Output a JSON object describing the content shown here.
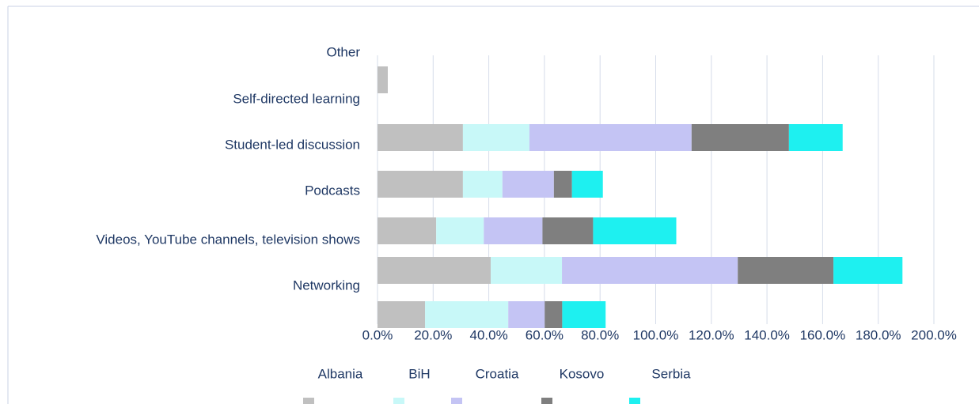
{
  "chart_data": {
    "type": "stacked_bar",
    "orientation": "horizontal",
    "categories": [
      "Other",
      "Self-directed    learning",
      "Student-led discussion",
      "Podcasts",
      "Videos, YouTube channels, television shows",
      "Networking"
    ],
    "series": [
      {
        "name": "Albania",
        "color": "#c0c0c0",
        "values": [
          3.7,
          30.7,
          30.7,
          21.1,
          40.7,
          17.1
        ]
      },
      {
        "name": "BiH",
        "color": "#c8f8f8",
        "values": [
          0,
          23.9,
          14.2,
          17.1,
          25.6,
          29.9
        ]
      },
      {
        "name": "Croatia",
        "color": "#c4c4f4",
        "values": [
          0,
          58.3,
          18.5,
          21.1,
          63.2,
          13.1
        ]
      },
      {
        "name": "Kosovo",
        "color": "#7f7f7f",
        "values": [
          0,
          35.0,
          6.5,
          18.2,
          34.4,
          6.3
        ]
      },
      {
        "name": "Serbia",
        "color": "#1ef0f0",
        "values": [
          0,
          19.3,
          11.1,
          29.9,
          24.8,
          15.6
        ]
      }
    ],
    "xlim": [
      0,
      200
    ],
    "xticks": [
      {
        "value": 0,
        "label": "0.0%"
      },
      {
        "value": 20,
        "label": "20.0%"
      },
      {
        "value": 40,
        "label": "40.0%"
      },
      {
        "value": 60,
        "label": "60.0%"
      },
      {
        "value": 80,
        "label": "80.0%"
      },
      {
        "value": 100,
        "label": "100.0%"
      },
      {
        "value": 120,
        "label": "120.0%"
      },
      {
        "value": 140,
        "label": "140.0%"
      },
      {
        "value": 160,
        "label": "160.0%"
      },
      {
        "value": 180,
        "label": "180.0%"
      },
      {
        "value": 200,
        "label": "200.0%"
      }
    ],
    "grid": true,
    "legend": "bottom"
  }
}
